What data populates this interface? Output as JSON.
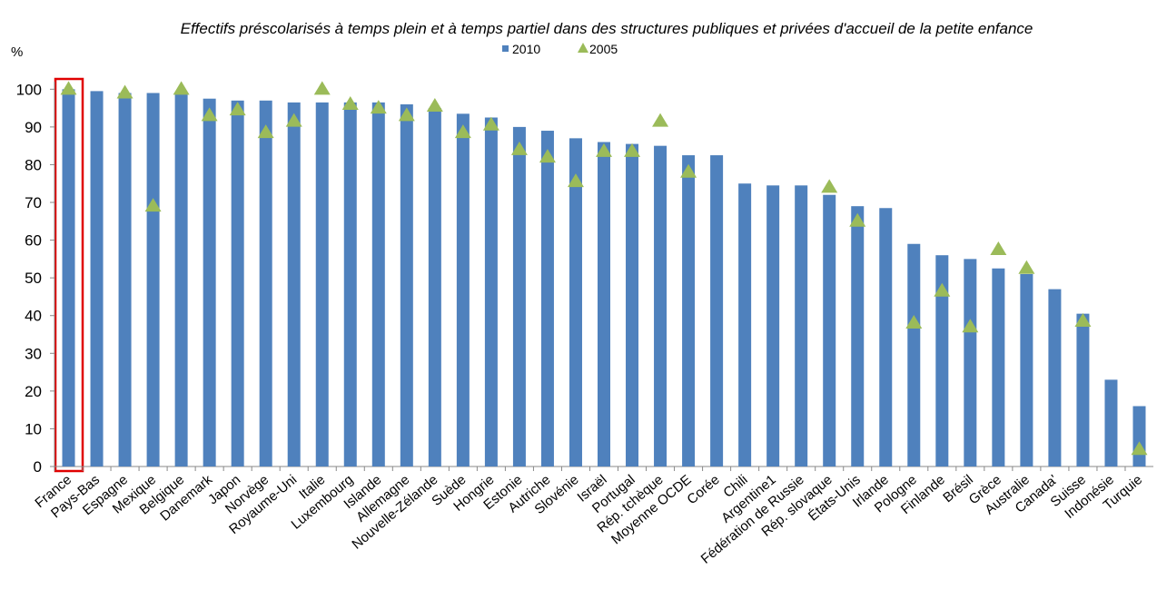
{
  "chart_data": {
    "type": "bar",
    "subtitle": "Effectifs préscolarisés à temps plein et à temps partiel dans des structures publiques et privées d'accueil de la petite enfance",
    "y_label": "%",
    "categories": [
      "France",
      "Pays-Bas",
      "Espagne",
      "Mexique",
      "Belgique",
      "Danemark",
      "Japon",
      "Norvège",
      "Royaume-Uni",
      "Italie",
      "Luxembourg",
      "Islande",
      "Allemagne",
      "Nouvelle-Zélande",
      "Suède",
      "Hongrie",
      "Estonie",
      "Autriche",
      "Slovénie",
      "Israël",
      "Portugal",
      "Rép. tchèque",
      "Moyenne OCDE",
      "Corée",
      "Chili",
      "Argentine1",
      "Fédération de Russie",
      "Rép. slovaque",
      "États-Unis",
      "Irlande",
      "Pologne",
      "Finlande",
      "Brésil",
      "Grèce",
      "Australie",
      "Canada'",
      "Suisse",
      "Indonésie",
      "Turquie"
    ],
    "series": [
      {
        "name": "2010",
        "color": "#4f81bd",
        "marker": "bar",
        "values": [
          100,
          99.5,
          99,
          99,
          99,
          97.5,
          97,
          97,
          96.5,
          96.5,
          96.5,
          96.5,
          96,
          95,
          93.5,
          92.5,
          90,
          89,
          87,
          86,
          85.5,
          85,
          82.5,
          82.5,
          75,
          74.5,
          74.5,
          72,
          69,
          68.5,
          59,
          56,
          55,
          52.5,
          51,
          47,
          40.5,
          23,
          16
        ]
      },
      {
        "name": "2005",
        "color": "#9bbb59",
        "marker": "triangle",
        "values": [
          100,
          null,
          99,
          69,
          100,
          93,
          94.5,
          88.5,
          91.5,
          100,
          96,
          95,
          93,
          95.5,
          88.5,
          90.5,
          84,
          82,
          75.5,
          83.5,
          83.5,
          91.5,
          78,
          null,
          null,
          null,
          null,
          74,
          65,
          null,
          38,
          46.5,
          37,
          57.5,
          52.5,
          null,
          38.5,
          null,
          4.5
        ]
      }
    ],
    "ylim": [
      0,
      102
    ],
    "yticks": [
      0,
      10,
      20,
      30,
      40,
      50,
      60,
      70,
      80,
      90,
      100
    ]
  }
}
